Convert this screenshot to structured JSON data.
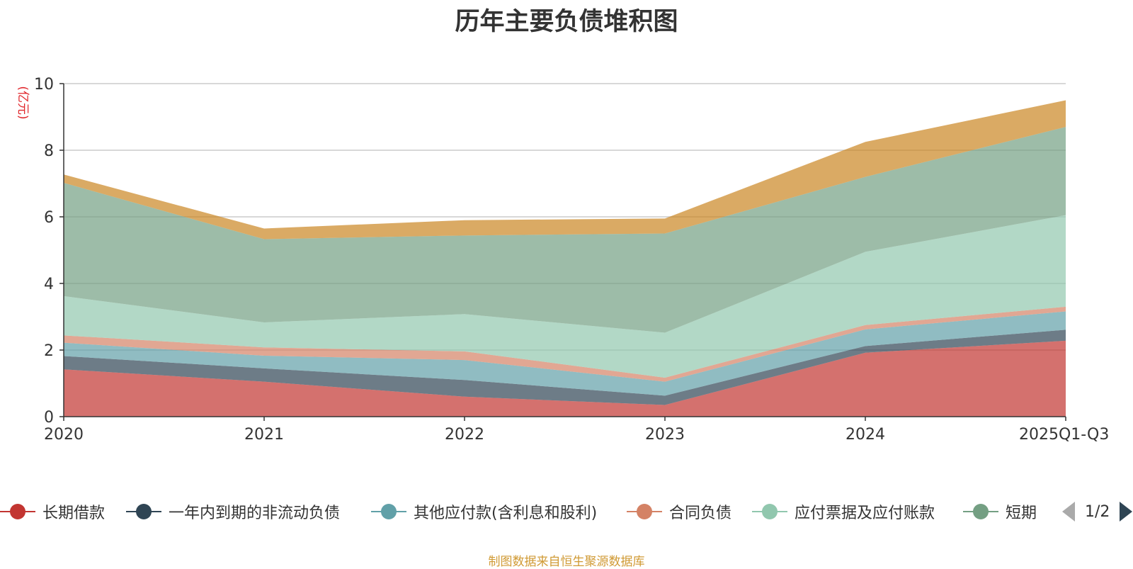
{
  "chart_data": {
    "type": "area",
    "stacked": true,
    "title": "历年主要负债堆积图",
    "ylabel": "(亿元)",
    "xlabel": "",
    "ylim": [
      0,
      10
    ],
    "yticks": [
      0,
      2,
      4,
      6,
      8,
      10
    ],
    "categories": [
      "2020",
      "2021",
      "2022",
      "2023",
      "2024",
      "2025Q1-Q3"
    ],
    "grid": true,
    "series": [
      {
        "name": "长期借款",
        "color": "#c23531",
        "values": [
          1.42,
          1.05,
          0.6,
          0.35,
          1.92,
          2.28
        ]
      },
      {
        "name": "一年内到期的非流动负债",
        "color": "#2f4554",
        "values": [
          0.4,
          0.4,
          0.5,
          0.28,
          0.2,
          0.33
        ]
      },
      {
        "name": "其他应付款(含利息和股利)",
        "color": "#61a0a8",
        "values": [
          0.4,
          0.38,
          0.6,
          0.42,
          0.5,
          0.55
        ]
      },
      {
        "name": "合同负债",
        "color": "#d48265",
        "values": [
          0.22,
          0.25,
          0.26,
          0.12,
          0.13,
          0.14
        ]
      },
      {
        "name": "应付票据及应付账款",
        "color": "#91c7ae",
        "values": [
          1.18,
          0.75,
          1.12,
          1.35,
          2.2,
          2.75
        ]
      },
      {
        "name": "短期借款",
        "color": "#749f83",
        "values": [
          3.4,
          2.5,
          2.36,
          2.98,
          2.25,
          2.65
        ]
      },
      {
        "name": "",
        "color": "#ca8622",
        "values": [
          0.25,
          0.32,
          0.46,
          0.45,
          1.05,
          0.8
        ]
      }
    ],
    "legend_visible": [
      "长期借款",
      "一年内到期的非流动负债",
      "其他应付款(含利息和股利)",
      "合同负债",
      "应付票据及应付账款",
      "短期借款"
    ],
    "legend_page": "1/2",
    "source": "制图数据来自恒生聚源数据库"
  }
}
